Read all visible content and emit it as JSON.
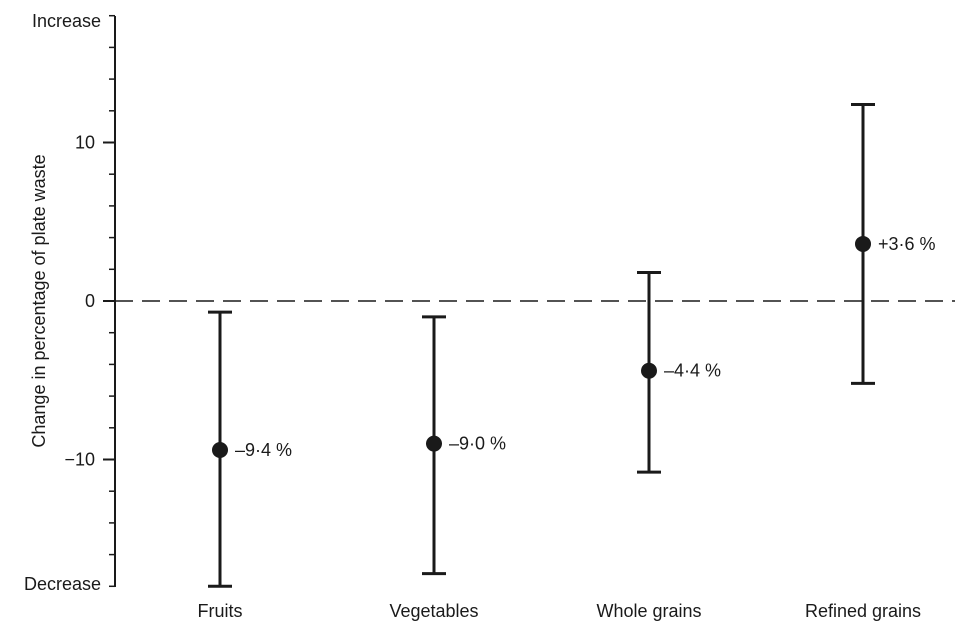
{
  "chart_data": {
    "type": "scatter",
    "ylabel": "Change in percentage of plate waste",
    "y_top_label": "Increase",
    "y_bottom_label": "Decrease",
    "ylim": [
      -18,
      18
    ],
    "yticks": [
      -10,
      0,
      10
    ],
    "ytick_labels": [
      "−10",
      "0",
      "10"
    ],
    "reference_line": {
      "y": 0,
      "style": "dashed"
    },
    "categories": [
      "Fruits",
      "Vegetables",
      "Whole grains",
      "Refined grains"
    ],
    "values": [
      -9.4,
      -9.0,
      -4.4,
      3.6
    ],
    "ci_lower": [
      -18.0,
      -17.2,
      -10.8,
      -5.2
    ],
    "ci_upper": [
      -0.7,
      -1.0,
      1.8,
      12.4
    ],
    "value_labels": [
      "–9·4 %",
      "–9·0 %",
      "–4·4 %",
      "+3·6 %"
    ],
    "grid": false
  }
}
